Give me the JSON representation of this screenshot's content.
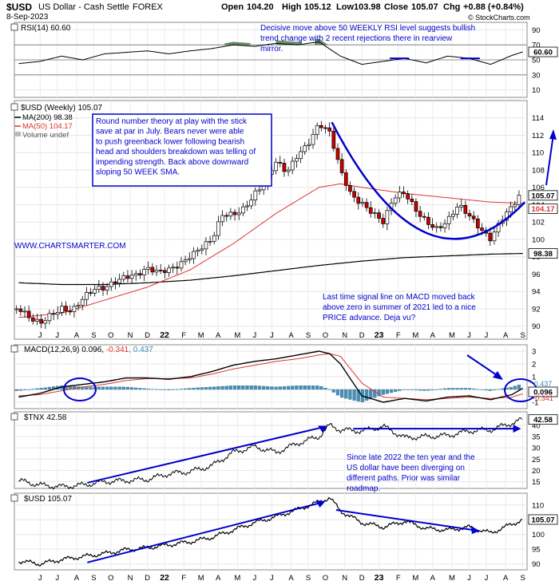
{
  "header": {
    "symbol": "$USD",
    "name": "US Dollar - Cash Settle",
    "exchange": "FOREX",
    "date": "8-Sep-2023",
    "open_label": "Open",
    "open": "104.20",
    "high_label": "High",
    "high": "105.12",
    "low_label": "Low",
    "low": "103.98",
    "close_label": "Close",
    "close": "105.07",
    "chg_label": "Chg",
    "chg": "+0.88 (+0.84%)",
    "watermark": "© StockCharts.com"
  },
  "colors": {
    "candle": "#000000",
    "down_fill": "#cc0000",
    "ma50": "#dd3333",
    "ma200": "#000000",
    "annotation": "#0000cc",
    "rsi_fill": "#4a7a4a",
    "histogram": "#4a8fb3",
    "panel_border": "#888888"
  },
  "x_axis": {
    "labels": [
      {
        "text": "J",
        "x": 2021.5
      },
      {
        "text": "J",
        "x": 2021.58
      },
      {
        "text": "A",
        "x": 2021.67
      },
      {
        "text": "S",
        "x": 2021.75
      },
      {
        "text": "O",
        "x": 2021.83
      },
      {
        "text": "N",
        "x": 2021.92
      },
      {
        "text": "D",
        "x": 2022.0
      },
      {
        "text": "22",
        "x": 2022.08
      },
      {
        "text": "F",
        "x": 2022.17
      },
      {
        "text": "M",
        "x": 2022.25
      },
      {
        "text": "A",
        "x": 2022.33
      },
      {
        "text": "M",
        "x": 2022.42
      },
      {
        "text": "J",
        "x": 2022.5
      },
      {
        "text": "J",
        "x": 2022.58
      },
      {
        "text": "A",
        "x": 2022.67
      },
      {
        "text": "S",
        "x": 2022.75
      },
      {
        "text": "O",
        "x": 2022.83
      },
      {
        "text": "N",
        "x": 2022.92
      },
      {
        "text": "D",
        "x": 2023.0
      },
      {
        "text": "23",
        "x": 2023.08
      },
      {
        "text": "F",
        "x": 2023.17
      },
      {
        "text": "M",
        "x": 2023.25
      },
      {
        "text": "A",
        "x": 2023.33
      },
      {
        "text": "M",
        "x": 2023.42
      },
      {
        "text": "J",
        "x": 2023.5
      },
      {
        "text": "J",
        "x": 2023.58
      },
      {
        "text": "A",
        "x": 2023.67
      },
      {
        "text": "S",
        "x": 2023.75
      }
    ]
  },
  "chart_data": [
    {
      "type": "line",
      "id": "rsi",
      "legend": "RSI(14) 60.60",
      "ylim": [
        0,
        100
      ],
      "tick_labels": [
        "90",
        "70",
        "50",
        "30",
        "10"
      ],
      "tick_values": [
        90,
        70,
        50,
        30,
        10
      ],
      "level_lines": [
        70,
        50,
        30
      ],
      "last_value_label": "60.60",
      "x": [
        2021.4,
        2021.5,
        2021.6,
        2021.7,
        2021.8,
        2021.9,
        2022.0,
        2022.1,
        2022.2,
        2022.3,
        2022.4,
        2022.5,
        2022.6,
        2022.7,
        2022.8,
        2022.9,
        2023.0,
        2023.1,
        2023.2,
        2023.3,
        2023.4,
        2023.5,
        2023.6,
        2023.7,
        2023.75
      ],
      "values": [
        45,
        48,
        55,
        50,
        58,
        60,
        62,
        58,
        62,
        65,
        70,
        68,
        72,
        70,
        74,
        55,
        44,
        48,
        52,
        46,
        55,
        52,
        44,
        56,
        60.6
      ],
      "annotation": "Decisive move above 50 WEEKLY RSI level suggests bullish trend change with 2 recent rejections there in rearview mirror."
    },
    {
      "type": "candlestick",
      "id": "price",
      "title": "$USD (Weekly) 105.07",
      "legend": [
        {
          "label": "MA(200) 98.38",
          "color": "#000000"
        },
        {
          "label": "MA(50) 104.17",
          "color": "#dd3333"
        },
        {
          "label": "Volume undef",
          "color": "#555555"
        }
      ],
      "ylim": [
        88.5,
        116
      ],
      "tick_labels": [
        "114",
        "112",
        "110",
        "108",
        "106",
        "104",
        "102",
        "100",
        "98",
        "96",
        "94",
        "92",
        "90"
      ],
      "tick_values": [
        114,
        112,
        110,
        108,
        106,
        104,
        102,
        100,
        98,
        96,
        94,
        92,
        90
      ],
      "last_price_label": "105.07",
      "ma50_label": "104.17",
      "ma200_label": "98.38",
      "close_points": {
        "x": [
          2021.4,
          2021.45,
          2021.5,
          2021.55,
          2021.6,
          2021.65,
          2021.7,
          2021.75,
          2021.8,
          2021.85,
          2021.9,
          2021.95,
          2022.0,
          2022.05,
          2022.1,
          2022.15,
          2022.2,
          2022.25,
          2022.3,
          2022.35,
          2022.4,
          2022.45,
          2022.5,
          2022.55,
          2022.6,
          2022.65,
          2022.7,
          2022.75,
          2022.8,
          2022.85,
          2022.9,
          2022.95,
          2023.0,
          2023.05,
          2023.1,
          2023.15,
          2023.2,
          2023.25,
          2023.3,
          2023.35,
          2023.4,
          2023.45,
          2023.5,
          2023.55,
          2023.6,
          2023.65,
          2023.7,
          2023.75
        ],
        "values": [
          92.0,
          90.5,
          90.0,
          91.5,
          92.5,
          92.0,
          93.0,
          93.8,
          94.2,
          95.5,
          96.2,
          96.0,
          96.3,
          95.8,
          96.5,
          97.5,
          98.5,
          99.0,
          99.5,
          102.5,
          103.0,
          104.0,
          105.5,
          106.5,
          108.5,
          107.5,
          110.0,
          111.5,
          113.5,
          112.0,
          107.5,
          105.0,
          104.5,
          103.5,
          102.0,
          104.5,
          105.0,
          103.5,
          102.5,
          101.5,
          102.0,
          103.5,
          102.5,
          101.5,
          100.5,
          102.5,
          103.5,
          105.07
        ]
      },
      "ma50": {
        "x": [
          2021.4,
          2021.6,
          2021.8,
          2022.0,
          2022.2,
          2022.4,
          2022.6,
          2022.8,
          2022.9,
          2023.0,
          2023.2,
          2023.4,
          2023.6,
          2023.75
        ],
        "values": [
          91.0,
          91.5,
          93.0,
          94.5,
          96.5,
          99.5,
          103.0,
          106.0,
          106.4,
          106.0,
          105.3,
          104.8,
          104.3,
          104.17
        ]
      },
      "ma200": {
        "x": [
          2021.4,
          2021.6,
          2021.8,
          2022.0,
          2022.2,
          2022.4,
          2022.6,
          2022.8,
          2023.0,
          2023.2,
          2023.4,
          2023.6,
          2023.75
        ],
        "values": [
          95.0,
          94.8,
          94.8,
          95.0,
          95.3,
          95.8,
          96.4,
          97.0,
          97.5,
          97.9,
          98.1,
          98.3,
          98.38
        ]
      },
      "annotation": "Round number theory at play with the stick save at par in July. Bears never were able to push greenback lower following bearish head and shoulders breakdown was telling of impending strength. Back above downward sloping 50 WEEK SMA.",
      "watermark_text": "WWW.CHARTSMARTER.COM",
      "annotation2": "Last time signal line on MACD moved back above zero in summer of 2021 led to a nice PRICE advance. Deja vu?"
    },
    {
      "type": "line",
      "id": "macd",
      "legend_name": "MACD(12,26,9)",
      "legend_macd": "0.096",
      "legend_signal": "-0.341",
      "legend_hist": "0.437",
      "ylim": [
        -1.5,
        3.5
      ],
      "tick_labels": [
        "3",
        "2",
        "1",
        "0",
        "-1"
      ],
      "tick_values": [
        3,
        2,
        1,
        0,
        -1
      ],
      "value_labels": [
        "0.437",
        "0.096",
        "-0.341"
      ],
      "macd": {
        "x": [
          2021.4,
          2021.5,
          2021.6,
          2021.7,
          2021.8,
          2021.9,
          2022.0,
          2022.1,
          2022.2,
          2022.3,
          2022.4,
          2022.5,
          2022.6,
          2022.7,
          2022.8,
          2022.85,
          2022.9,
          2023.0,
          2023.1,
          2023.2,
          2023.3,
          2023.4,
          2023.5,
          2023.6,
          2023.7,
          2023.75
        ],
        "values": [
          -0.6,
          -0.3,
          0.2,
          0.4,
          0.6,
          0.9,
          0.9,
          0.8,
          1.0,
          1.4,
          1.9,
          2.2,
          2.4,
          2.7,
          3.0,
          2.8,
          2.0,
          -0.5,
          -1.0,
          -0.7,
          -0.9,
          -0.6,
          -0.5,
          -0.8,
          -0.4,
          0.096
        ]
      },
      "signal": {
        "x": [
          2021.4,
          2021.5,
          2021.6,
          2021.7,
          2021.8,
          2021.9,
          2022.0,
          2022.1,
          2022.2,
          2022.3,
          2022.4,
          2022.5,
          2022.6,
          2022.7,
          2022.8,
          2022.85,
          2022.9,
          2023.0,
          2023.1,
          2023.2,
          2023.3,
          2023.4,
          2023.5,
          2023.6,
          2023.7,
          2023.75
        ],
        "values": [
          -0.5,
          -0.4,
          -0.1,
          0.2,
          0.4,
          0.7,
          0.85,
          0.85,
          0.9,
          1.2,
          1.6,
          1.9,
          2.2,
          2.4,
          2.7,
          2.8,
          2.6,
          0.5,
          -0.6,
          -0.7,
          -0.8,
          -0.7,
          -0.6,
          -0.7,
          -0.6,
          -0.341
        ]
      }
    },
    {
      "type": "line",
      "id": "tnx",
      "legend": "$TNX 42.58",
      "ylim": [
        12,
        46
      ],
      "tick_labels": [
        "40",
        "35",
        "30",
        "25",
        "20",
        "15"
      ],
      "tick_values": [
        40,
        35,
        30,
        25,
        20,
        15
      ],
      "last_value_label": "42.58",
      "x": [
        2021.4,
        2021.5,
        2021.6,
        2021.7,
        2021.8,
        2021.9,
        2022.0,
        2022.1,
        2022.2,
        2022.3,
        2022.4,
        2022.5,
        2022.6,
        2022.7,
        2022.8,
        2022.85,
        2022.9,
        2023.0,
        2023.1,
        2023.2,
        2023.3,
        2023.4,
        2023.5,
        2023.6,
        2023.7,
        2023.75
      ],
      "values": [
        15.5,
        13.5,
        12.8,
        13.5,
        15.0,
        15.5,
        16.0,
        18.5,
        19.5,
        22.0,
        28.0,
        30.5,
        28.0,
        32.0,
        35.0,
        40.0,
        38.0,
        37.5,
        39.5,
        34.5,
        35.0,
        35.5,
        37.5,
        38.0,
        41.0,
        42.58
      ],
      "annotation": "Since late 2022 the ten year and the US dollar have been diverging on different paths. Prior was similar roadmap."
    },
    {
      "type": "line",
      "id": "usd_line",
      "legend": "$USD 105.07",
      "ylim": [
        88,
        114
      ],
      "tick_labels": [
        "110",
        "105",
        "100",
        "95",
        "90"
      ],
      "tick_values": [
        110,
        105,
        100,
        95,
        90
      ],
      "last_value_label": "105.07",
      "x": [
        2021.4,
        2021.5,
        2021.6,
        2021.7,
        2021.8,
        2021.9,
        2022.0,
        2022.1,
        2022.2,
        2022.3,
        2022.4,
        2022.5,
        2022.6,
        2022.7,
        2022.8,
        2022.85,
        2022.9,
        2023.0,
        2023.1,
        2023.2,
        2023.3,
        2023.4,
        2023.5,
        2023.6,
        2023.7,
        2023.75
      ],
      "values": [
        91.0,
        90.0,
        91.5,
        92.5,
        93.5,
        94.8,
        95.5,
        96.5,
        97.5,
        99.0,
        101.5,
        104.0,
        106.0,
        108.5,
        111.0,
        112.5,
        108.0,
        104.0,
        102.5,
        104.5,
        102.0,
        101.5,
        102.5,
        100.5,
        103.5,
        105.07
      ]
    }
  ]
}
